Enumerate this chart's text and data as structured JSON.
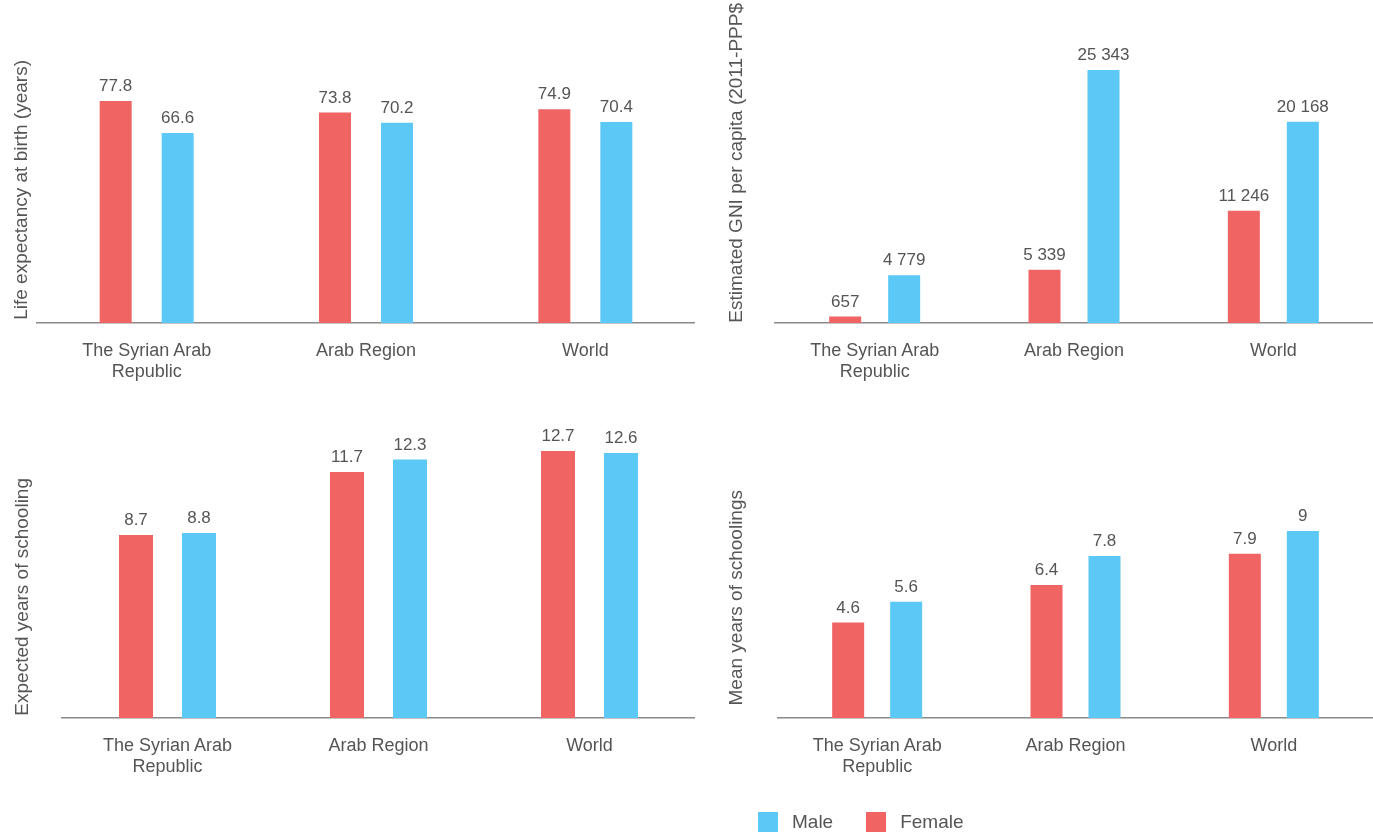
{
  "chart_data": [
    {
      "type": "bar",
      "ylabel": "Life expectancy at birth (years)",
      "categories": [
        "The Syrian Arab Republic",
        "Arab Region",
        "World"
      ],
      "series": [
        {
          "color": "#f06464",
          "values": [
            77.8,
            73.8,
            74.9
          ]
        },
        {
          "color": "#5bc8f5",
          "values": [
            66.6,
            70.2,
            70.4
          ]
        }
      ],
      "data_labels": true,
      "tick_labels": "x"
    },
    {
      "type": "bar",
      "ylabel": "Estimated GNI per capita (2011-PPP$",
      "categories": [
        "The Syrian Arab Republic",
        "Arab Region",
        "World"
      ],
      "series": [
        {
          "color": "#f06464",
          "values": [
            657,
            5339,
            11246
          ],
          "value_labels": [
            "657",
            "5 339",
            "11 246"
          ]
        },
        {
          "color": "#5bc8f5",
          "values": [
            4779,
            25343,
            20168
          ],
          "value_labels": [
            "4 779",
            "25 343",
            "20 168"
          ]
        }
      ],
      "tick_labels": "x"
    },
    {
      "type": "bar",
      "ylabel": "Expected years of schooling",
      "categories": [
        "The Syrian Arab Republic",
        "Arab Region",
        "World"
      ],
      "series": [
        {
          "color": "#f06464",
          "values": [
            8.7,
            11.7,
            12.7
          ]
        },
        {
          "color": "#5bc8f5",
          "values": [
            8.8,
            12.3,
            12.6
          ]
        }
      ],
      "data_labels": true,
      "tick_labels": "x"
    },
    {
      "type": "bar",
      "ylabel": "Mean years of schoolings",
      "categories": [
        "The Syrian Arab Republic",
        "Arab Region",
        "World"
      ],
      "series": [
        {
          "name": "Female",
          "color": "#f06464",
          "values": [
            4.6,
            6.4,
            7.9
          ]
        },
        {
          "name": "Male",
          "color": "#5bc8f5",
          "values": [
            5.6,
            7.8,
            9
          ]
        }
      ],
      "data_labels": true,
      "tick_labels": "x",
      "legend": "bottom left"
    }
  ]
}
